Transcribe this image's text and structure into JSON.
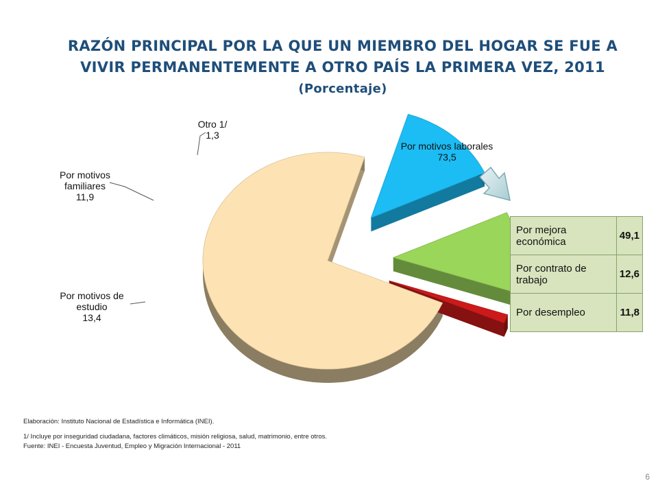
{
  "title": {
    "line1": "RAZÓN PRINCIPAL POR LA QUE UN MIEMBRO DEL HOGAR SE FUE A",
    "line2": "VIVIR PERMANENTEMENTE A OTRO PAÍS LA PRIMERA VEZ, 2011",
    "subtitle": "(Porcentaje)"
  },
  "chart_data": {
    "type": "pie",
    "title": "RAZÓN PRINCIPAL POR LA QUE UN MIEMBRO DEL HOGAR SE FUE A VIVIR PERMANENTEMENTE A OTRO PAÍS LA PRIMERA VEZ, 2011",
    "unit": "Porcentaje",
    "slices": [
      {
        "label": "Por motivos laborales",
        "label_lines": [
          "Por motivos laborales"
        ],
        "value": 73.5,
        "value_label": "73,5",
        "color": "#fde3b3"
      },
      {
        "label": "Por motivos de estudio",
        "label_lines": [
          "Por motivos de",
          "estudio"
        ],
        "value": 13.4,
        "value_label": "13,4",
        "color": "#1cbcf4"
      },
      {
        "label": "Por motivos familiares",
        "label_lines": [
          "Por motivos",
          "familiares"
        ],
        "value": 11.9,
        "value_label": "11,9",
        "color": "#9ad65a"
      },
      {
        "label": "Otro 1/",
        "label_lines": [
          "Otro 1/"
        ],
        "value": 1.3,
        "value_label": "1,3",
        "color": "#cc1a1a"
      }
    ],
    "breakdown": {
      "parent": "Por motivos laborales",
      "rows": [
        {
          "label": "Por mejora económica",
          "value": 49.1,
          "value_label": "49,1"
        },
        {
          "label": "Por contrato de trabajo",
          "value": 12.6,
          "value_label": "12,6"
        },
        {
          "label": "Por desempleo",
          "value": 11.8,
          "value_label": "11,8"
        }
      ]
    }
  },
  "notes": {
    "elaboracion": "Elaboración: Instituto Nacional de Estadística e Informática (INEI).",
    "footnote": "1/ Incluye por inseguridad ciudadana, factores climáticos, misión religiosa, salud, matrimonio, entre otros.",
    "fuente": "Fuente: INEI - Encuesta Juventud, Empleo y Migración Internacional - 2011"
  },
  "page_number": "6"
}
